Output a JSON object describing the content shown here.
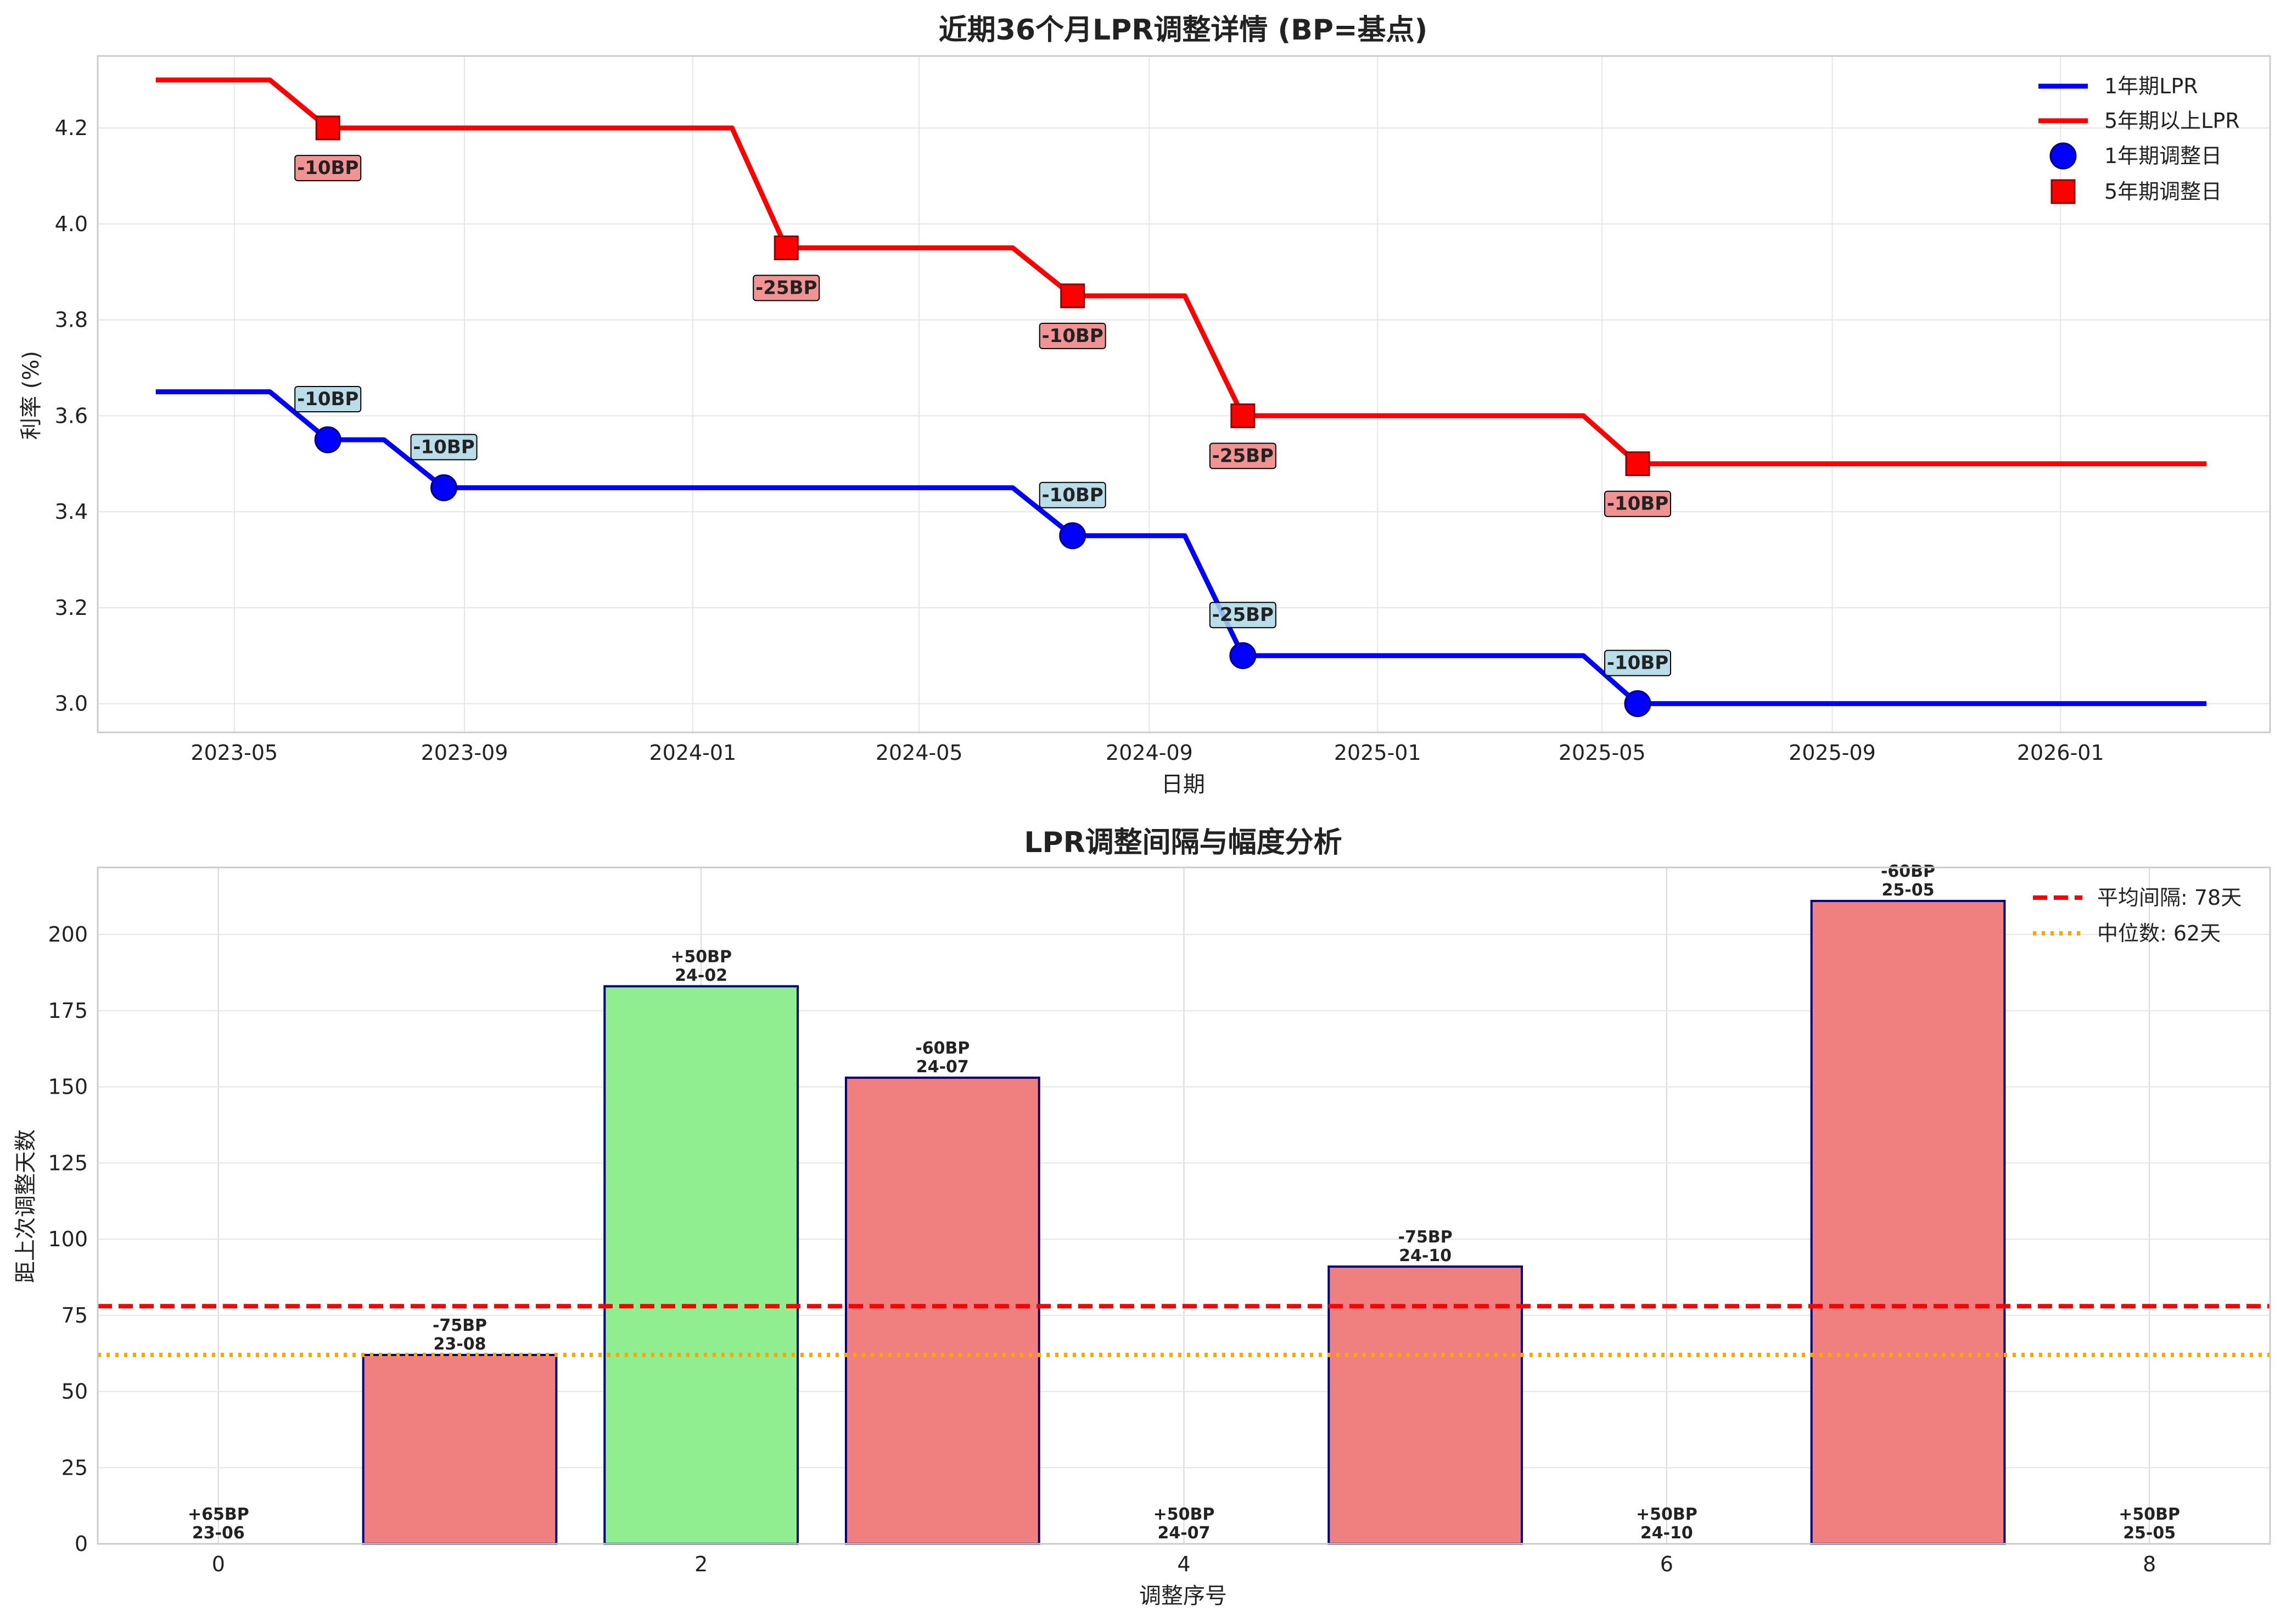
{
  "chart_data": [
    {
      "type": "line",
      "title": "近期36个月LPR调整详情 (BP=基点)",
      "xlabel": "日期",
      "ylabel": "利率 (%)",
      "ylim": [
        2.94,
        4.35
      ],
      "xlim": [
        "2023-02-17",
        "2026-04-23"
      ],
      "grid": true,
      "legend_position": "top-right",
      "x_ticks": [
        "2023-05",
        "2023-09",
        "2024-01",
        "2024-05",
        "2024-09",
        "2025-01",
        "2025-05",
        "2025-09",
        "2026-01"
      ],
      "y_ticks": [
        "3.0",
        "3.2",
        "3.4",
        "3.6",
        "3.8",
        "4.0",
        "4.2"
      ],
      "series": [
        {
          "name": "1年期LPR",
          "color": "#0000ff",
          "points": [
            [
              "2023-03-20",
              3.65
            ],
            [
              "2023-05-20",
              3.65
            ],
            [
              "2023-06-20",
              3.55
            ],
            [
              "2023-07-20",
              3.55
            ],
            [
              "2023-08-21",
              3.45
            ],
            [
              "2024-06-20",
              3.45
            ],
            [
              "2024-07-22",
              3.35
            ],
            [
              "2024-09-20",
              3.35
            ],
            [
              "2024-10-21",
              3.1
            ],
            [
              "2025-04-21",
              3.1
            ],
            [
              "2025-05-20",
              3.0
            ],
            [
              "2026-03-20",
              3.0
            ]
          ]
        },
        {
          "name": "5年期以上LPR",
          "color": "#ff0000",
          "points": [
            [
              "2023-03-20",
              4.3
            ],
            [
              "2023-05-20",
              4.3
            ],
            [
              "2023-06-20",
              4.2
            ],
            [
              "2024-01-22",
              4.2
            ],
            [
              "2024-02-20",
              3.95
            ],
            [
              "2024-06-20",
              3.95
            ],
            [
              "2024-07-22",
              3.85
            ],
            [
              "2024-09-20",
              3.85
            ],
            [
              "2024-10-21",
              3.6
            ],
            [
              "2025-04-21",
              3.6
            ],
            [
              "2025-05-20",
              3.5
            ],
            [
              "2026-03-20",
              3.5
            ]
          ]
        }
      ],
      "markers": [
        {
          "name": "1年期调整日",
          "series": 0,
          "color": "#0000ff",
          "shape": "circle",
          "points": [
            {
              "x": "2023-06-20",
              "y": 3.55,
              "label": "-10BP"
            },
            {
              "x": "2023-08-21",
              "y": 3.45,
              "label": "-10BP"
            },
            {
              "x": "2024-07-22",
              "y": 3.35,
              "label": "-10BP"
            },
            {
              "x": "2024-10-21",
              "y": 3.1,
              "label": "-25BP"
            },
            {
              "x": "2025-05-20",
              "y": 3.0,
              "label": "-10BP"
            }
          ]
        },
        {
          "name": "5年期调整日",
          "series": 1,
          "color": "#ff0000",
          "shape": "square",
          "points": [
            {
              "x": "2023-06-20",
              "y": 4.2,
              "label": "-10BP"
            },
            {
              "x": "2024-02-20",
              "y": 3.95,
              "label": "-25BP"
            },
            {
              "x": "2024-07-22",
              "y": 3.85,
              "label": "-10BP"
            },
            {
              "x": "2024-10-21",
              "y": 3.6,
              "label": "-25BP"
            },
            {
              "x": "2025-05-20",
              "y": 3.5,
              "label": "-10BP"
            }
          ]
        }
      ]
    },
    {
      "type": "bar",
      "title": "LPR调整间隔与幅度分析",
      "xlabel": "调整序号",
      "ylabel": "距上次调整天数",
      "ylim": [
        0,
        222
      ],
      "xlim": [
        -0.5,
        8.5
      ],
      "grid": true,
      "legend_position": "top-right",
      "x_ticks": [
        "0",
        "2",
        "4",
        "6",
        "8"
      ],
      "y_ticks": [
        "0",
        "25",
        "50",
        "75",
        "100",
        "125",
        "150",
        "175",
        "200"
      ],
      "categories": [
        0,
        1,
        2,
        3,
        4,
        5,
        6,
        7,
        8
      ],
      "values": [
        0,
        62,
        183,
        153,
        0,
        91,
        0,
        211,
        0
      ],
      "bar_colors": [
        "#f08080",
        "#f08080",
        "#90ee90",
        "#f08080",
        "#f08080",
        "#f08080",
        "#f08080",
        "#f08080",
        "#f08080"
      ],
      "bar_edge_color": "#000080",
      "labels": [
        [
          "+65BP",
          "23-06"
        ],
        [
          "-75BP",
          "23-08"
        ],
        [
          "+50BP",
          "24-02"
        ],
        [
          "-60BP",
          "24-07"
        ],
        [
          "+50BP",
          "24-07"
        ],
        [
          "-75BP",
          "24-10"
        ],
        [
          "+50BP",
          "24-10"
        ],
        [
          "-60BP",
          "25-05"
        ],
        [
          "+50BP",
          "25-05"
        ]
      ],
      "reference_lines": [
        {
          "name": "平均间隔: 78天",
          "value": 78,
          "color": "#ff0000",
          "style": "dashed"
        },
        {
          "name": "中位数: 62天",
          "value": 62,
          "color": "#ffa500",
          "style": "dotted"
        }
      ]
    }
  ]
}
